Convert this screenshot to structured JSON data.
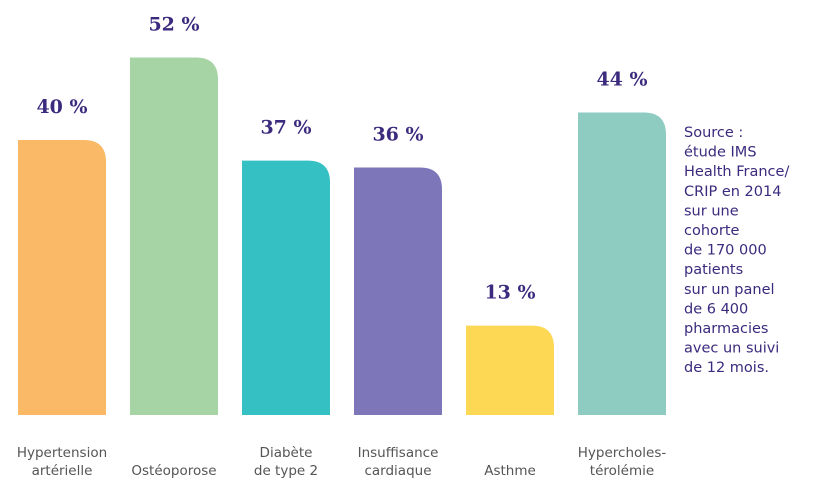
{
  "chart_data": {
    "type": "bar",
    "categories": [
      [
        "Hypertension",
        "artérielle"
      ],
      [
        "Ostéoporose"
      ],
      [
        "Diabète",
        "de type 2"
      ],
      [
        "Insuffisance",
        "cardiaque"
      ],
      [
        "Asthme"
      ],
      [
        "Hypercholes-",
        "térolémie"
      ]
    ],
    "values": [
      40,
      52,
      37,
      36,
      13,
      44
    ],
    "value_labels": [
      "40 %",
      "52 %",
      "37 %",
      "36 %",
      "13 %",
      "44 %"
    ],
    "colors": [
      "#f9b966",
      "#a6d4a5",
      "#35c0c4",
      "#7d76b9",
      "#fdd855",
      "#8ecbc0"
    ],
    "ylim": [
      0,
      56
    ],
    "annotation": [
      "Source :",
      "étude IMS",
      "Health France/",
      "CRIP en 2014",
      "sur une",
      "cohorte",
      "de 170 000",
      "patients",
      "sur un panel",
      "de 6 400",
      "pharmacies",
      "avec un suivi",
      "de 12 mois."
    ]
  }
}
